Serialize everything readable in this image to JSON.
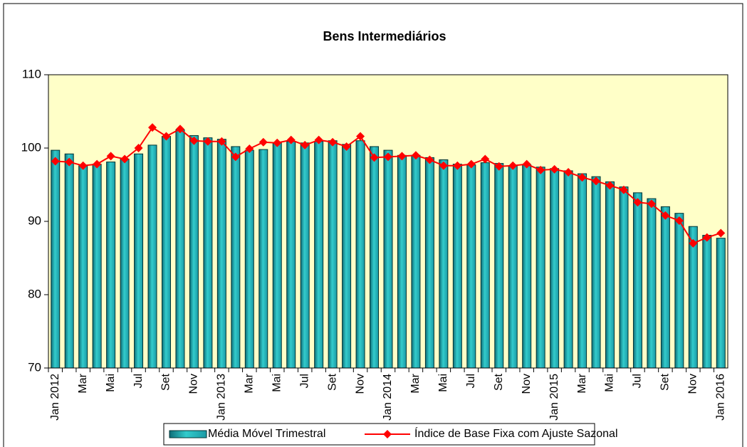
{
  "chart_data": {
    "type": "bar_line",
    "title": "Bens Intermediários",
    "categories": [
      "Jan 2012",
      null,
      "Mar",
      null,
      "Mai",
      null,
      "Jul",
      null,
      "Set",
      null,
      "Nov",
      null,
      "Jan 2013",
      null,
      "Mar",
      null,
      "Mai",
      null,
      "Jul",
      null,
      "Set",
      null,
      "Nov",
      null,
      "Jan 2014",
      null,
      "Mar",
      null,
      "Mai",
      null,
      "Jul",
      null,
      "Set",
      null,
      "Nov",
      null,
      "Jan 2015",
      null,
      "Mar",
      null,
      "Mai",
      null,
      "Jul",
      null,
      "Set",
      null,
      "Nov",
      null,
      "Jan 2016"
    ],
    "series": [
      {
        "name": "Média Móvel Trimestral",
        "type": "bar",
        "color": "#33cccc",
        "values": [
          99.7,
          99.2,
          97.6,
          97.8,
          98.1,
          98.5,
          99.2,
          100.4,
          101.6,
          102.5,
          101.7,
          101.4,
          101.2,
          100.2,
          99.7,
          99.8,
          100.7,
          100.9,
          100.7,
          100.9,
          101.0,
          100.5,
          101.0,
          100.2,
          99.7,
          99.0,
          99.0,
          98.7,
          98.4,
          97.8,
          97.7,
          98.0,
          97.9,
          97.6,
          97.7,
          97.4,
          97.2,
          96.9,
          96.5,
          96.1,
          95.4,
          94.7,
          93.9,
          93.1,
          92.0,
          91.1,
          89.3,
          88.1,
          87.7
        ]
      },
      {
        "name": "Índice de Base Fixa com Ajuste Sazonal",
        "type": "line",
        "color": "#ff0000",
        "values": [
          98.2,
          98.1,
          97.6,
          97.8,
          98.9,
          98.5,
          100.0,
          102.8,
          101.6,
          102.6,
          101.0,
          100.9,
          100.9,
          98.8,
          99.9,
          100.8,
          100.7,
          101.1,
          100.4,
          101.1,
          100.8,
          100.2,
          101.6,
          98.7,
          98.8,
          98.9,
          99.0,
          98.4,
          97.6,
          97.6,
          97.8,
          98.5,
          97.5,
          97.6,
          97.8,
          97.0,
          97.1,
          96.7,
          96.0,
          95.5,
          94.9,
          94.3,
          92.6,
          92.4,
          90.8,
          90.1,
          87.0,
          87.8,
          88.4
        ]
      }
    ],
    "ylim": [
      70,
      110
    ],
    "yticks": [
      70,
      80,
      90,
      100,
      110
    ],
    "plot_background": "#ffffc8",
    "legend": "bottom"
  }
}
